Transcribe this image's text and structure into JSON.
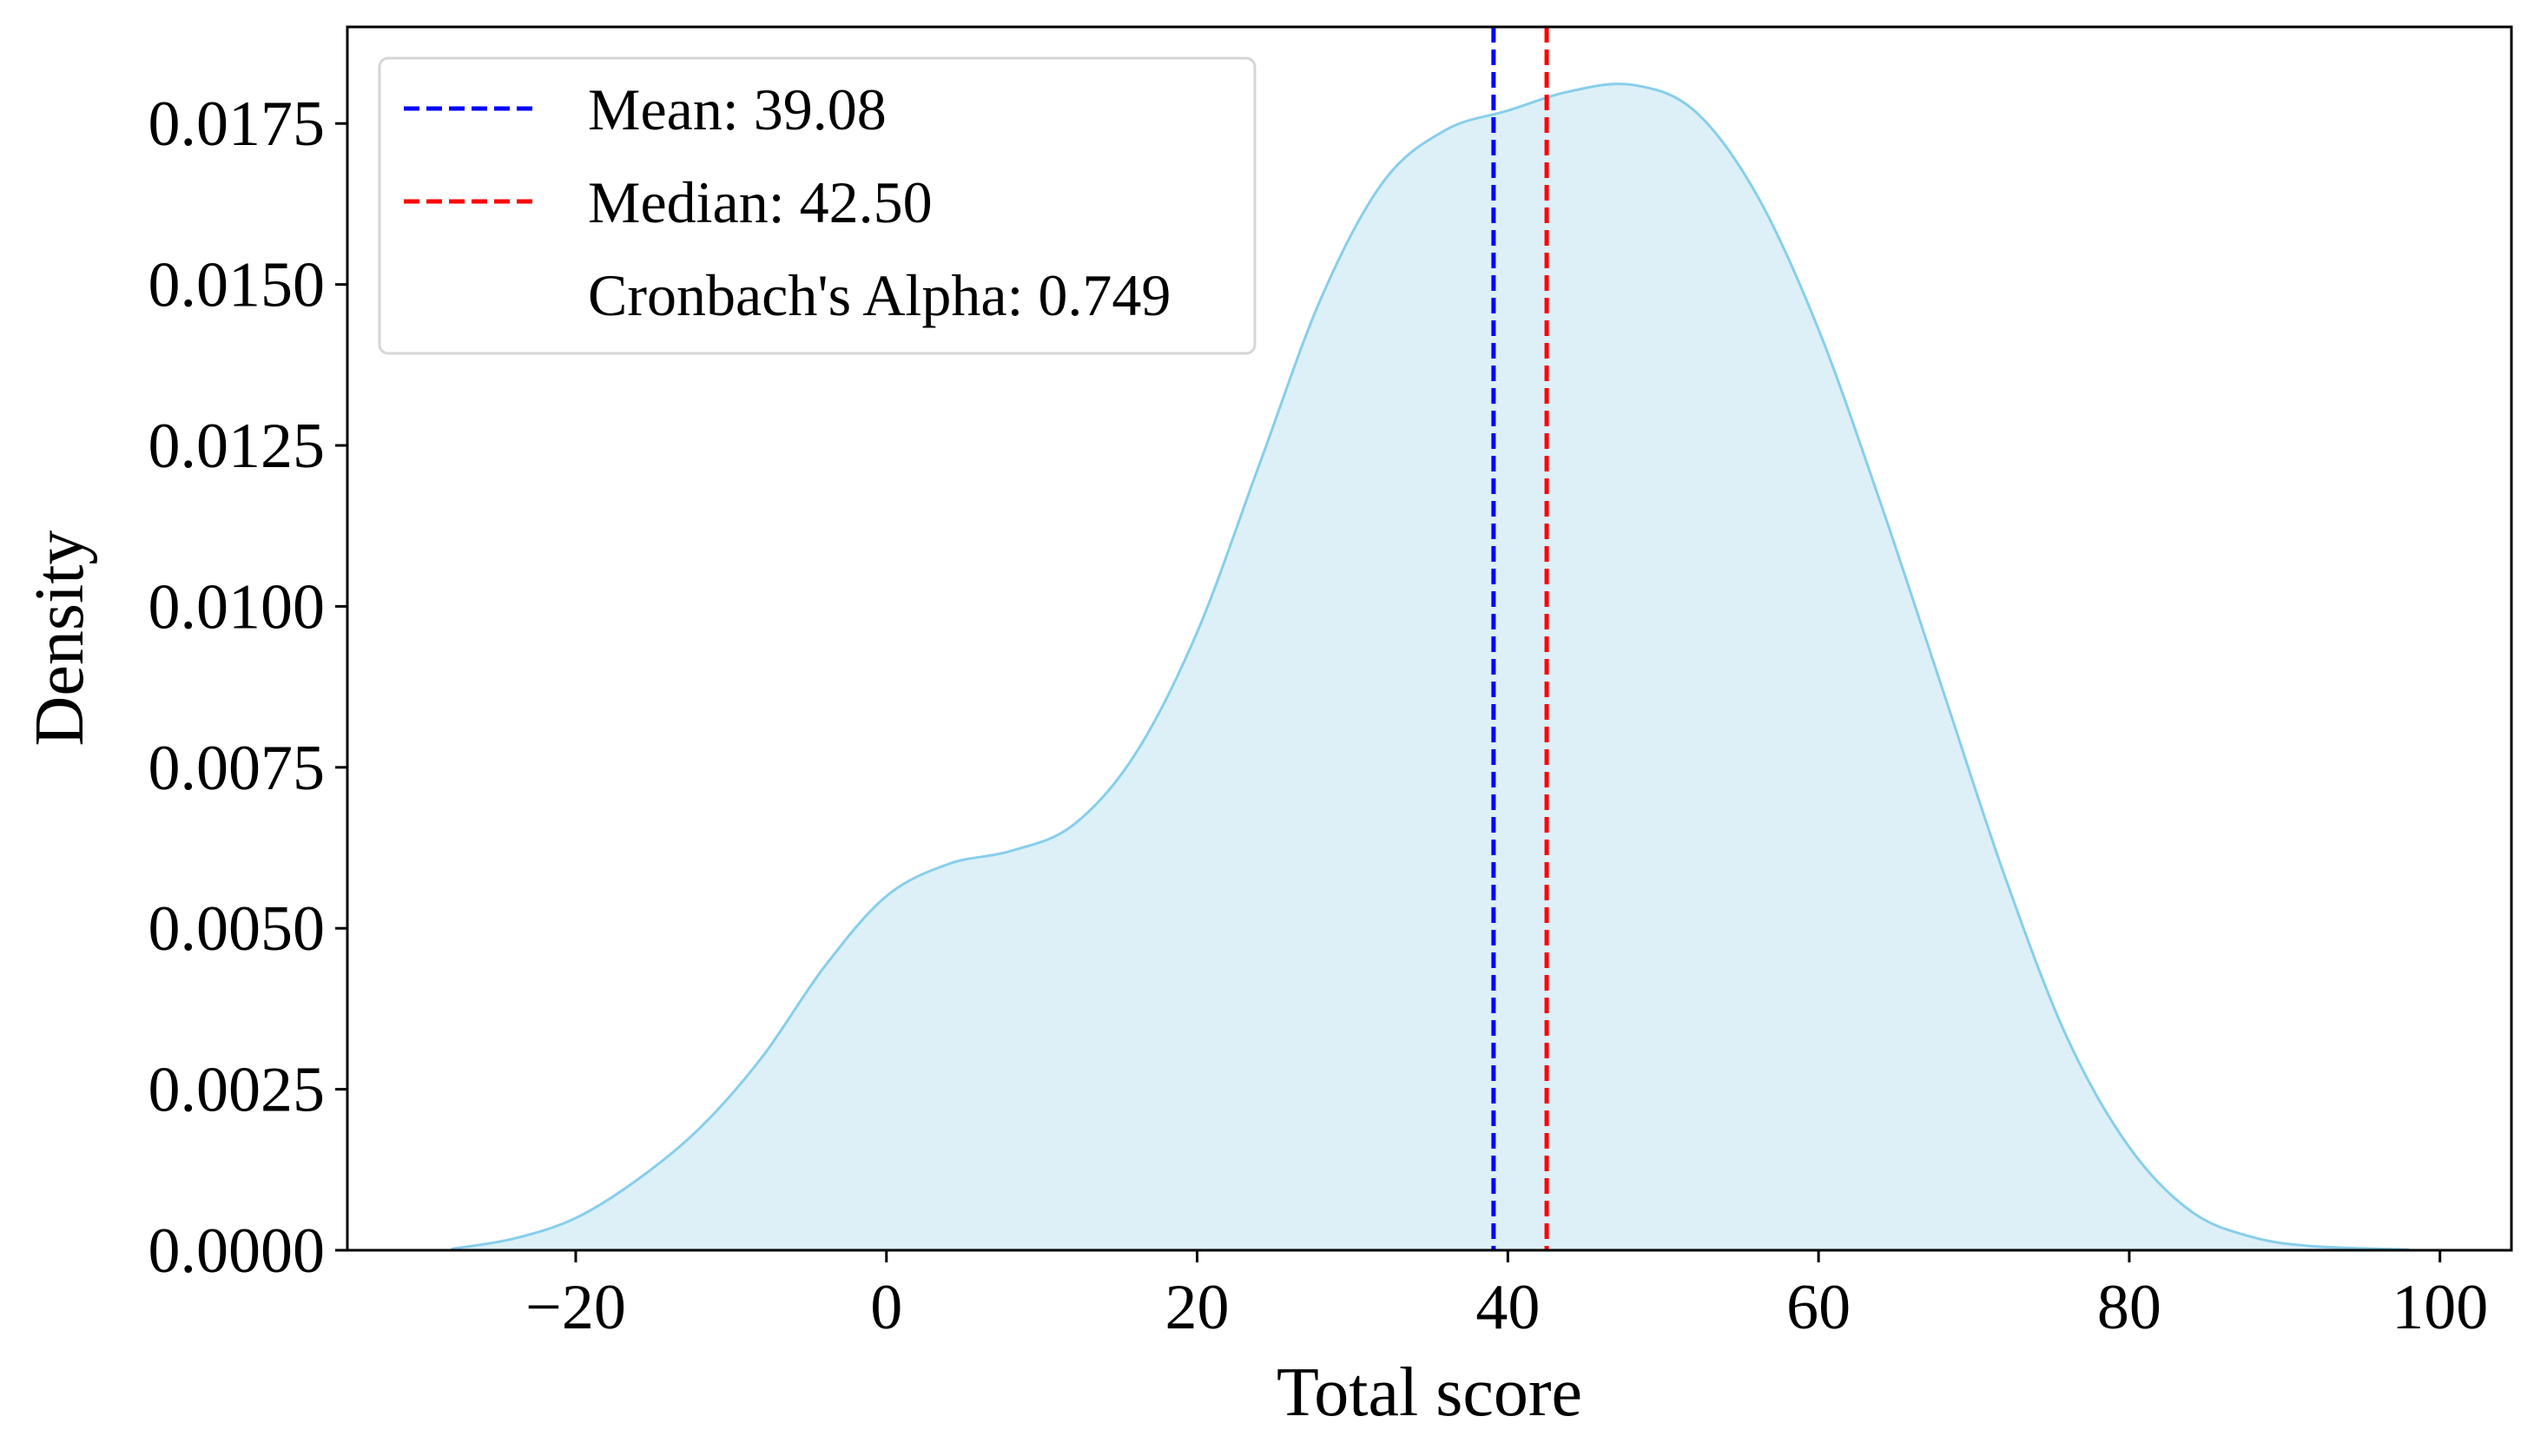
{
  "chart_data": {
    "type": "area",
    "xlabel": "Total score",
    "ylabel": "Density",
    "xlim": [
      -34.7,
      104.6
    ],
    "ylim": [
      0,
      0.019
    ],
    "x_ticks": [
      -20,
      0,
      20,
      40,
      60,
      80,
      100
    ],
    "x_tick_labels": [
      "−20",
      "0",
      "20",
      "40",
      "60",
      "80",
      "100"
    ],
    "y_ticks": [
      0,
      0.0025,
      0.005,
      0.0075,
      0.01,
      0.0125,
      0.015,
      0.0175
    ],
    "y_tick_labels": [
      "0.0000",
      "0.0025",
      "0.0050",
      "0.0075",
      "0.0100",
      "0.0125",
      "0.0150",
      "0.0175"
    ],
    "grid": false,
    "legend_position": "top-left",
    "series": [
      {
        "type": "area",
        "color": "#87CEEB",
        "fill": "#DDF0F8",
        "x": [
          -28,
          -24,
          -20,
          -16,
          -12,
          -8,
          -4,
          0,
          4,
          8,
          12,
          16,
          20,
          24,
          28,
          32,
          36,
          40,
          44,
          48,
          52,
          56,
          60,
          64,
          68,
          72,
          76,
          80,
          84,
          88,
          92,
          98
        ],
        "y": [
          2e-05,
          0.00018,
          0.0005,
          0.0011,
          0.0019,
          0.003,
          0.0044,
          0.0055,
          0.006,
          0.0062,
          0.0066,
          0.0077,
          0.0096,
          0.0122,
          0.0148,
          0.0166,
          0.0174,
          0.0177,
          0.018,
          0.0181,
          0.0177,
          0.0164,
          0.0143,
          0.0116,
          0.0087,
          0.0058,
          0.0033,
          0.0016,
          0.0006,
          0.0002,
          6e-05,
          1e-05
        ]
      }
    ],
    "vlines": [
      {
        "x": 39.08,
        "color": "#0000ff",
        "style": "dashed"
      },
      {
        "x": 42.5,
        "color": "#ff0000",
        "style": "dashed"
      }
    ],
    "legend": [
      {
        "label": "Mean: 39.08",
        "color": "#0000ff",
        "style": "dashed"
      },
      {
        "label": "Median: 42.50",
        "color": "#ff0000",
        "style": "dashed"
      },
      {
        "label": "Cronbach's Alpha: 0.749",
        "color": "none",
        "style": "none"
      }
    ]
  }
}
